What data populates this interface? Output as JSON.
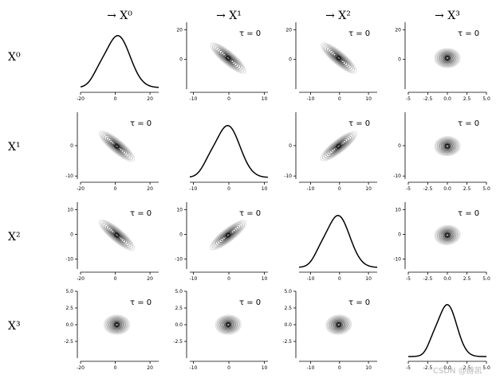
{
  "chart_data": {
    "type": "pairplot",
    "variables": [
      "X^0",
      "X^1",
      "X^2",
      "X^3"
    ],
    "column_titles": [
      "→ X⁰",
      "→ X¹",
      "→ X²",
      "→ X³"
    ],
    "row_labels": [
      "X⁰",
      "X¹",
      "X²",
      "X³"
    ],
    "lag_label": "τ = 0",
    "diagonal": "kde",
    "off_diagonal": "kde-contours",
    "axes_x": [
      {
        "var": "X^0",
        "lim": [
          -20,
          25
        ],
        "ticks": [
          -20,
          0,
          20
        ],
        "tick_labels": [
          "-20",
          "0",
          "20"
        ]
      },
      {
        "var": "X^1",
        "lim": [
          -11,
          11
        ],
        "ticks": [
          -10,
          0,
          10
        ],
        "tick_labels": [
          "-10",
          "0",
          "10"
        ]
      },
      {
        "var": "X^2",
        "lim": [
          -14,
          13
        ],
        "ticks": [
          -10,
          0,
          10
        ],
        "tick_labels": [
          "-10",
          "0",
          "10"
        ]
      },
      {
        "var": "X^3",
        "lim": [
          -5,
          5
        ],
        "ticks": [
          -5,
          -2.5,
          0,
          2.5,
          5
        ],
        "tick_labels": [
          "-5",
          "-2.5",
          "0.0",
          "2.5",
          "5.0"
        ]
      }
    ],
    "axes_y": [
      {
        "var": "X^0",
        "lim": [
          -20,
          25
        ],
        "ticks": [
          0,
          20
        ],
        "tick_labels": [
          "0",
          "20"
        ]
      },
      {
        "var": "X^1",
        "lim": [
          -11,
          11
        ],
        "ticks": [
          -10,
          0
        ],
        "tick_labels": [
          "-10",
          "0"
        ]
      },
      {
        "var": "X^2",
        "lim": [
          -14,
          13
        ],
        "ticks": [
          -10,
          0,
          10
        ],
        "tick_labels": [
          "-10",
          "0",
          "10"
        ]
      },
      {
        "var": "X^3",
        "lim": [
          -5,
          5
        ],
        "ticks": [
          -2.5,
          0,
          2.5,
          5
        ],
        "tick_labels": [
          "-2.5",
          "0.0",
          "2.5",
          "5.0"
        ]
      }
    ],
    "correlations": [
      [
        1.0,
        -0.8,
        -0.85,
        0.0
      ],
      [
        -0.8,
        1.0,
        0.75,
        0.05
      ],
      [
        -0.85,
        0.75,
        1.0,
        0.1
      ],
      [
        0.0,
        0.05,
        0.1,
        1.0
      ]
    ],
    "means": [
      1.5,
      -0.3,
      -0.5,
      0.0
    ],
    "sds": [
      7.0,
      3.4,
      4.0,
      1.2
    ],
    "watermark": "CSDN @赫凯"
  }
}
